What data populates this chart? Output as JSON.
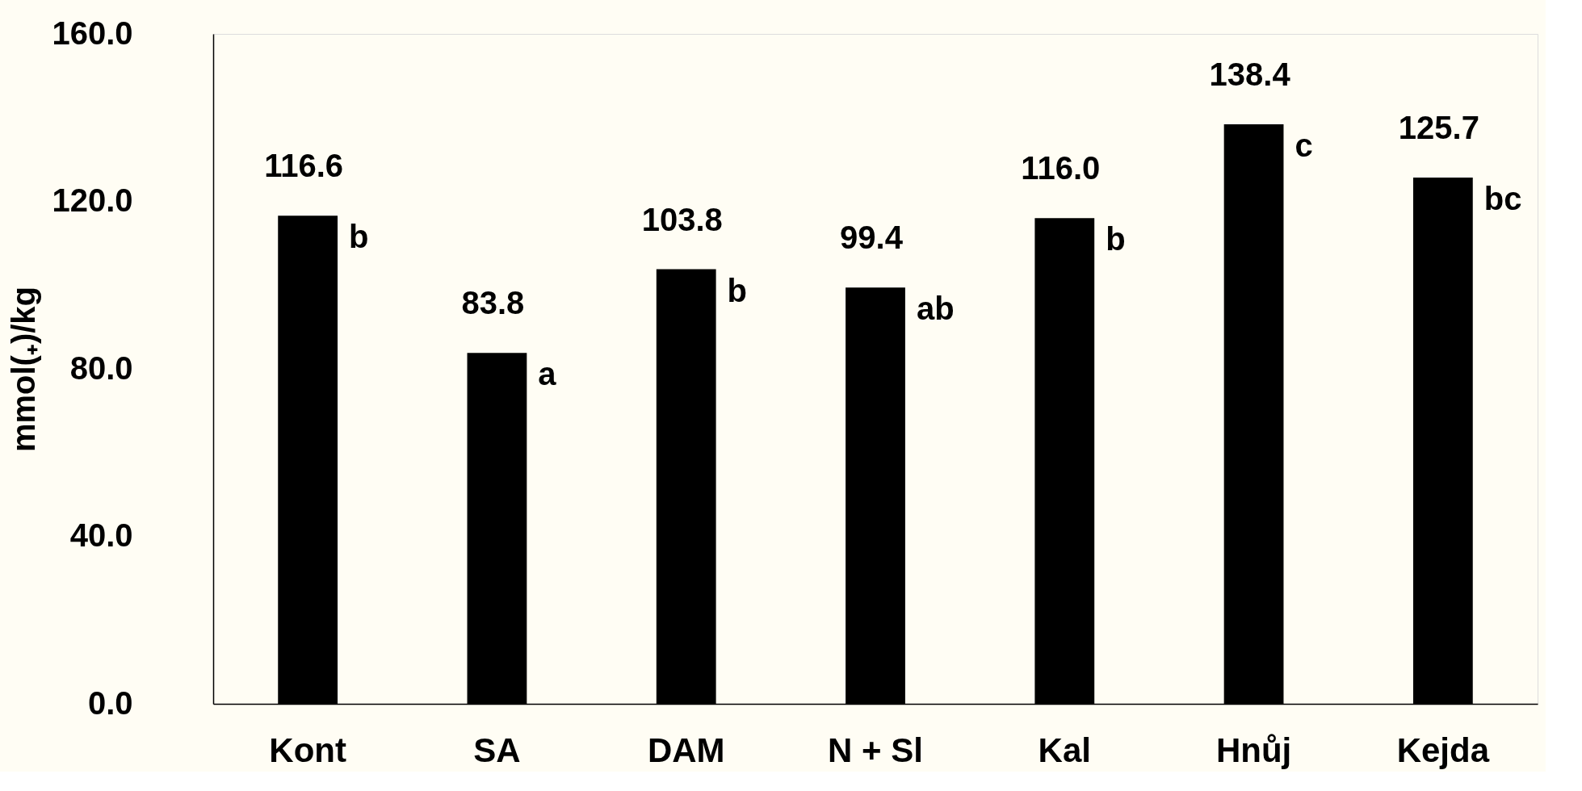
{
  "chart_data": {
    "type": "bar",
    "ylabel": "mmol(₊)/kg",
    "categories": [
      "Kont",
      "SA",
      "DAM",
      "N + Sl",
      "Kal",
      "Hnůj",
      "Kejda"
    ],
    "values": [
      116.6,
      83.8,
      103.8,
      99.4,
      116.0,
      138.4,
      125.7
    ],
    "color": "#000000",
    "value_labels": [
      "116.6",
      "83.8",
      "103.8",
      "99.4",
      "116.0",
      "138.4",
      "125.7"
    ],
    "ylim": [
      0,
      160
    ],
    "yticks": [
      {
        "value": 0,
        "label": "0.0"
      },
      {
        "value": 40,
        "label": "40.0"
      },
      {
        "value": 80,
        "label": "80.0"
      },
      {
        "value": 120,
        "label": "120.0"
      },
      {
        "value": 160,
        "label": "160.0"
      }
    ],
    "grid": false,
    "annotations": [
      {
        "text": "b",
        "x": "Kont",
        "y": 116.6
      },
      {
        "text": "a",
        "x": "SA",
        "y": 83.8
      },
      {
        "text": "b",
        "x": "DAM",
        "y": 103.8
      },
      {
        "text": "ab",
        "x": "N + Sl",
        "y": 99.4
      },
      {
        "text": "b",
        "x": "Kal",
        "y": 116.0
      },
      {
        "text": "c",
        "x": "Hnůj",
        "y": 138.4
      },
      {
        "text": "bc",
        "x": "Kejda",
        "y": 125.7
      }
    ]
  }
}
